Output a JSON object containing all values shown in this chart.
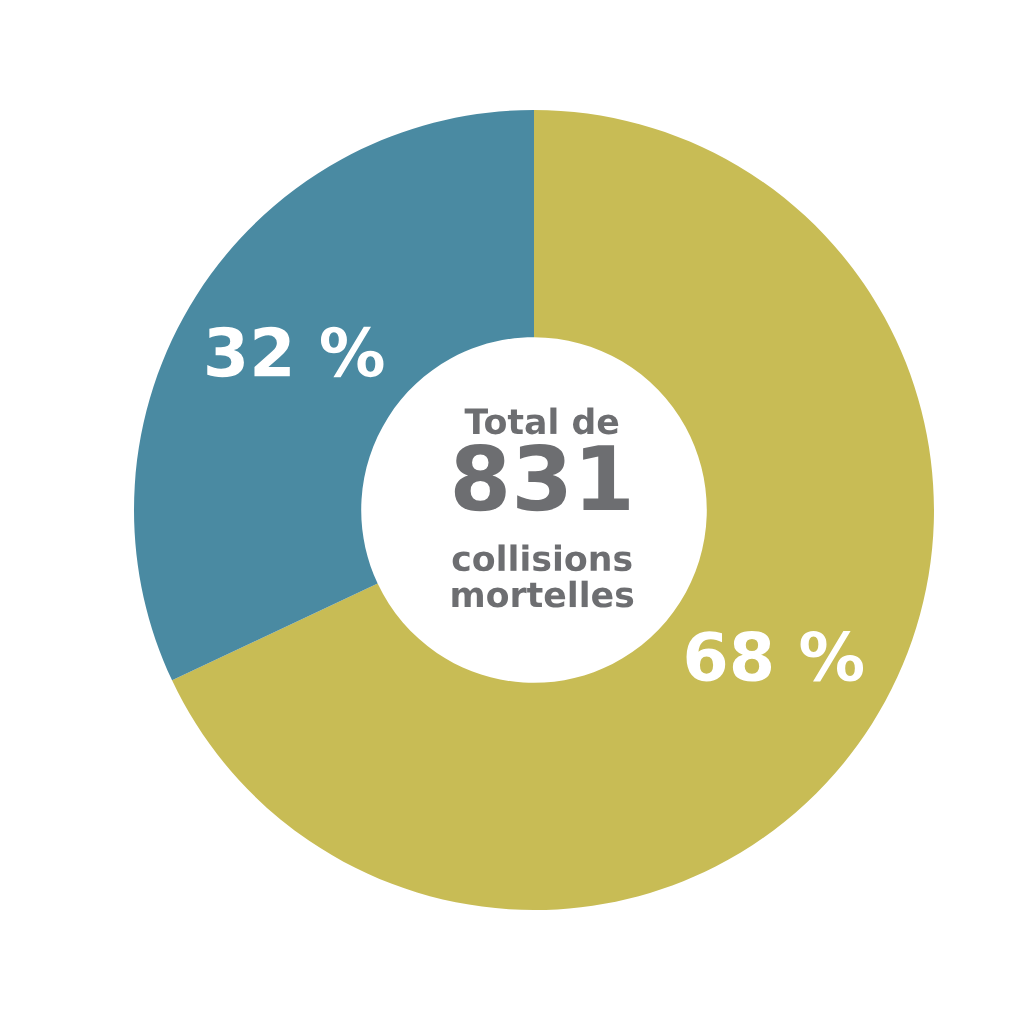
{
  "chart_data": {
    "type": "donut",
    "categories": [
      null,
      null
    ],
    "values": [
      68,
      32
    ],
    "colors": [
      "#c8bc55",
      "#4a8aa2"
    ],
    "value_labels": [
      "68 %",
      "32 %"
    ],
    "annotations": [
      "Total de",
      "831",
      "collisions\nmortelles"
    ]
  }
}
